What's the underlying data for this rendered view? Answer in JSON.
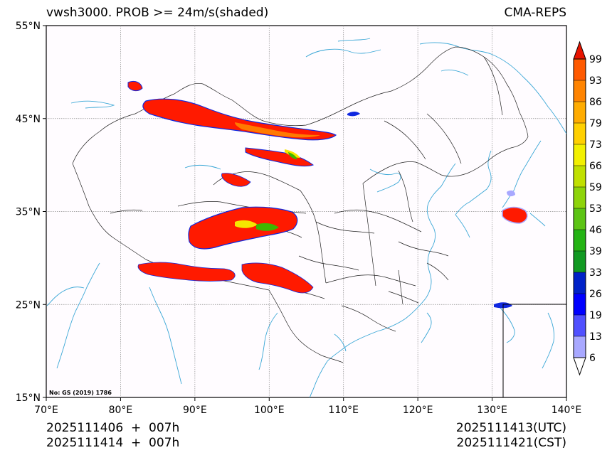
{
  "header": {
    "title_left": "vwsh3000. PROB >= 24m/s(shaded)",
    "title_right": "CMA-REPS"
  },
  "map": {
    "lat_labels": [
      "55°N",
      "45°N",
      "35°N",
      "25°N",
      "15°N"
    ],
    "lon_labels": [
      "70°E",
      "80°E",
      "90°E",
      "100°E",
      "110°E",
      "120°E",
      "130°E",
      "140°E"
    ],
    "lat_values": [
      55,
      45,
      35,
      25,
      15
    ],
    "lon_values": [
      70,
      80,
      90,
      100,
      110,
      120,
      130,
      140
    ],
    "extent": {
      "lon_min": 70,
      "lon_max": 140,
      "lat_min": 15,
      "lat_max": 55
    },
    "approval_note": "No: GS (2019) 1786",
    "colors": {
      "coast": "#3aa7d6",
      "border": "#222222",
      "high_prob": "#ff1a00",
      "orange": "#ff7a00",
      "yellow": "#f5e600",
      "green": "#3cb800",
      "blue": "#1028e0",
      "light_blue": "#a8a8ff"
    }
  },
  "colorbar": {
    "labels": [
      "6",
      "13",
      "19",
      "26",
      "33",
      "39",
      "46",
      "53",
      "59",
      "66",
      "73",
      "79",
      "86",
      "93",
      "99"
    ],
    "colors": [
      "#a8a8ff",
      "#5050ff",
      "#0000ff",
      "#0022c8",
      "#119a22",
      "#24b414",
      "#5cc414",
      "#8ed40a",
      "#c0e000",
      "#f2f000",
      "#ffd000",
      "#ffac00",
      "#ff8400",
      "#ff5a00",
      "#ff2a00",
      "#e81400"
    ]
  },
  "footer": {
    "left_line1": "2025111406  +  007h",
    "left_line2": "2025111414  +  007h",
    "right_line1": "2025111413(UTC)",
    "right_line2": "2025111421(CST)"
  }
}
